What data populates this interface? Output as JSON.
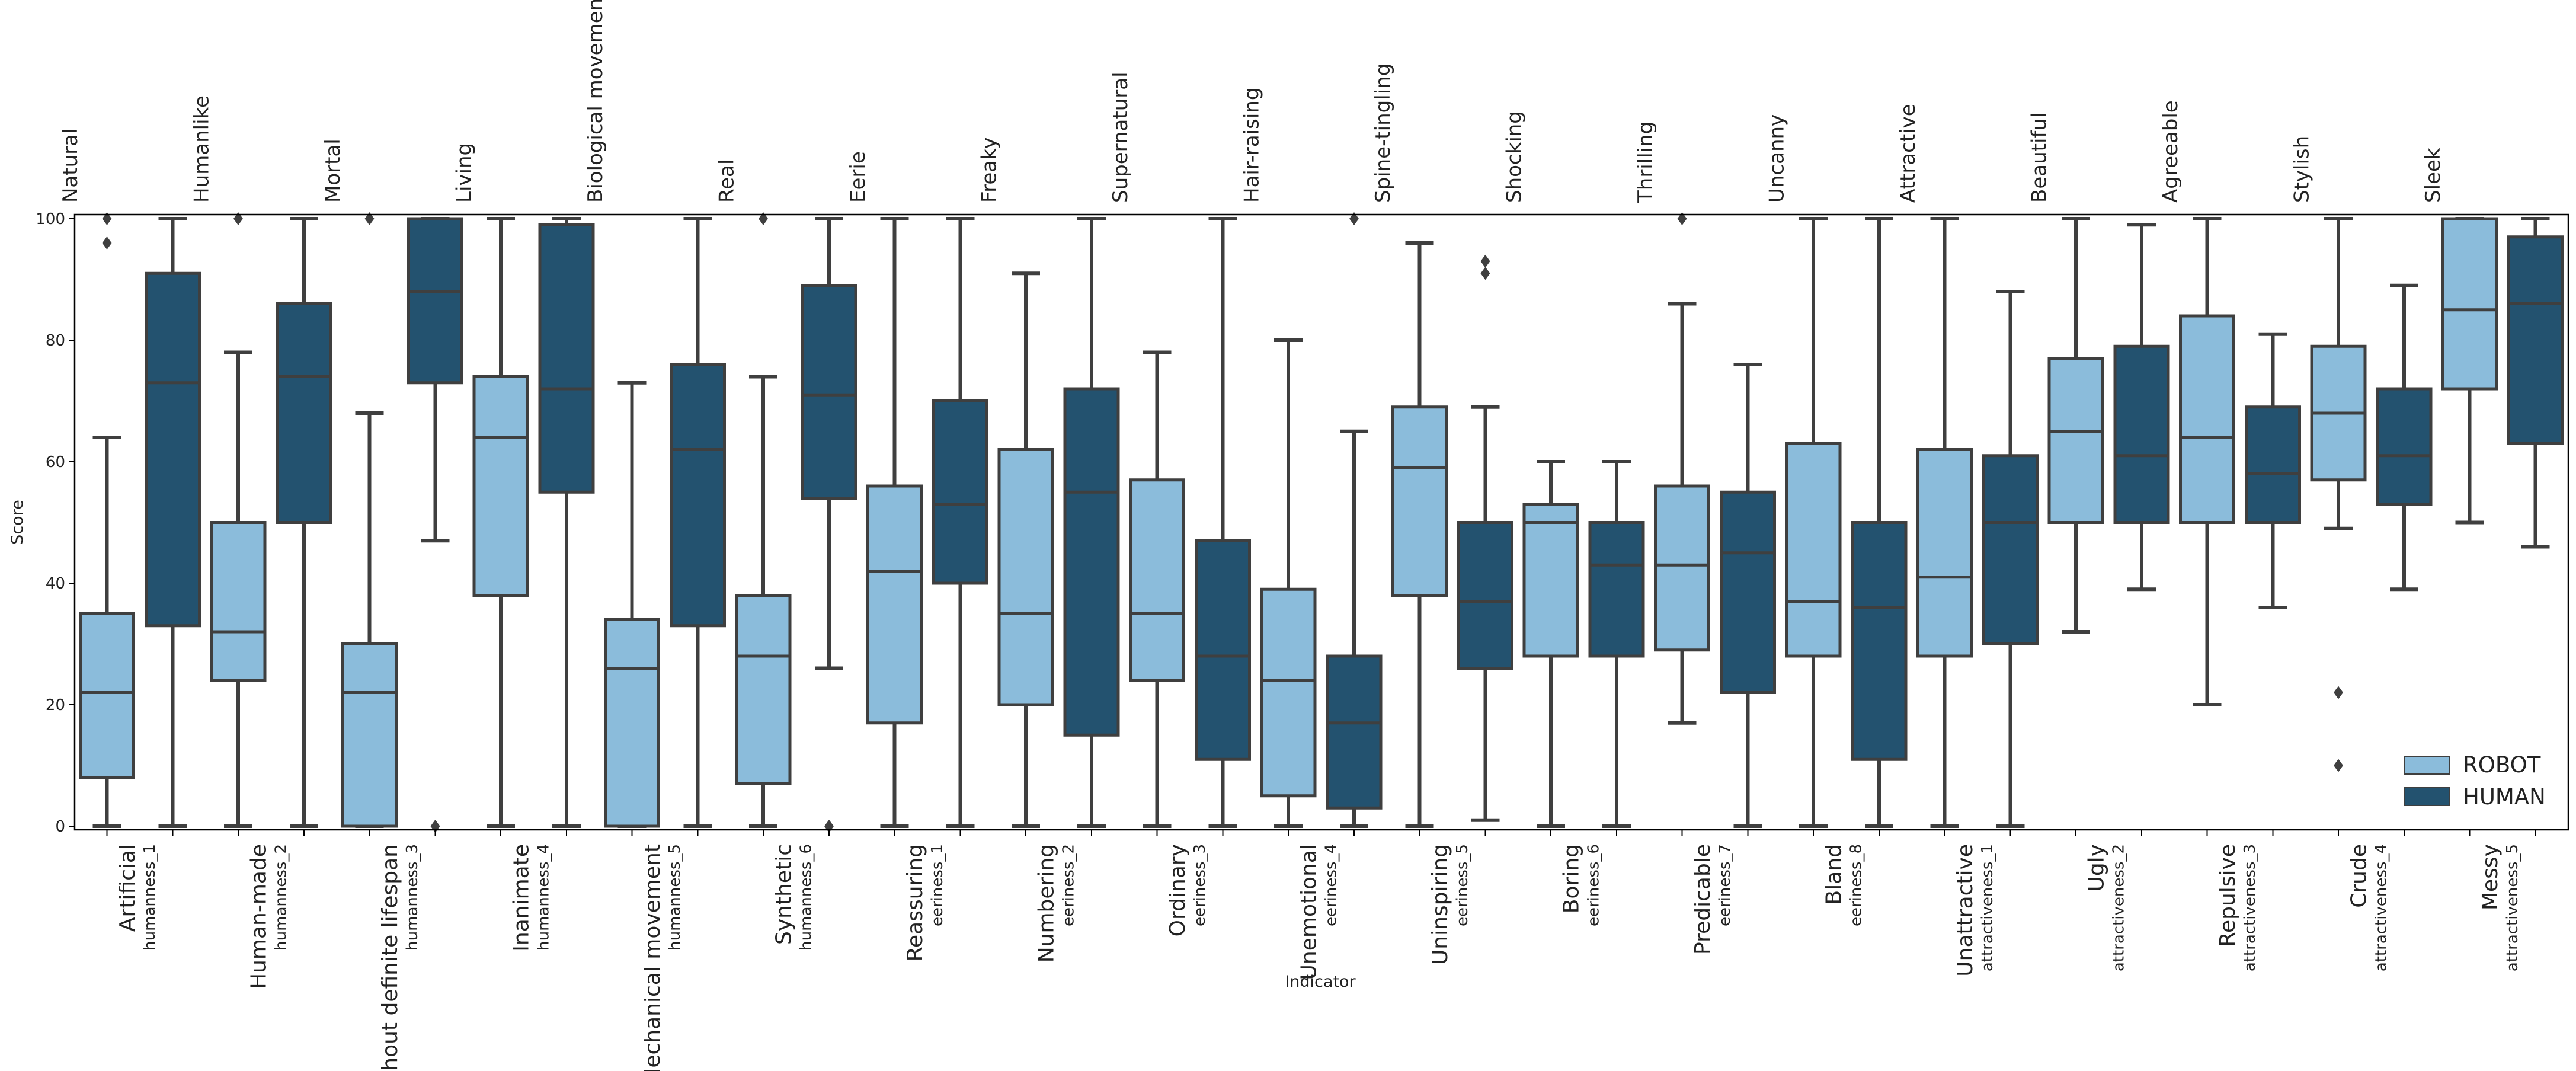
{
  "chart_data": {
    "type": "boxplot",
    "xlabel": "Indicator",
    "ylabel": "Score",
    "ylim": [
      0,
      100
    ],
    "yticks": [
      0,
      20,
      40,
      60,
      80,
      100
    ],
    "grid": false,
    "legend_position": "lower-right",
    "series": [
      {
        "name": "ROBOT",
        "color": "#8bbcdb"
      },
      {
        "name": "HUMAN",
        "color": "#23526f"
      }
    ],
    "indicators": [
      {
        "top_label": "Natural",
        "bottom_label": "Artificial",
        "code": "humanness_1",
        "robot": {
          "whisker_low": 0,
          "q1": 8,
          "median": 22,
          "q3": 35,
          "whisker_high": 64,
          "outliers": [
            96,
            100
          ]
        },
        "human": {
          "whisker_low": 0,
          "q1": 33,
          "median": 73,
          "q3": 91,
          "whisker_high": 100,
          "outliers": []
        }
      },
      {
        "top_label": "Humanlike",
        "bottom_label": "Human-made",
        "code": "humanness_2",
        "robot": {
          "whisker_low": 0,
          "q1": 24,
          "median": 32,
          "q3": 50,
          "whisker_high": 78,
          "outliers": [
            100
          ]
        },
        "human": {
          "whisker_low": 0,
          "q1": 50,
          "median": 74,
          "q3": 86,
          "whisker_high": 100,
          "outliers": []
        }
      },
      {
        "top_label": "Mortal",
        "bottom_label": "Without definite lifespan",
        "code": "humanness_3",
        "robot": {
          "whisker_low": 0,
          "q1": 0,
          "median": 22,
          "q3": 30,
          "whisker_high": 68,
          "outliers": [
            100
          ]
        },
        "human": {
          "whisker_low": 47,
          "q1": 73,
          "median": 88,
          "q3": 100,
          "whisker_high": 100,
          "outliers": [
            0
          ]
        }
      },
      {
        "top_label": "Living",
        "bottom_label": "Inanimate",
        "code": "humanness_4",
        "robot": {
          "whisker_low": 0,
          "q1": 38,
          "median": 64,
          "q3": 74,
          "whisker_high": 100,
          "outliers": []
        },
        "human": {
          "whisker_low": 0,
          "q1": 55,
          "median": 72,
          "q3": 99,
          "whisker_high": 100,
          "outliers": []
        }
      },
      {
        "top_label": "Biological movement",
        "bottom_label": "Mechanical movement",
        "code": "humanness_5",
        "robot": {
          "whisker_low": 0,
          "q1": 0,
          "median": 26,
          "q3": 34,
          "whisker_high": 73,
          "outliers": []
        },
        "human": {
          "whisker_low": 0,
          "q1": 33,
          "median": 62,
          "q3": 76,
          "whisker_high": 100,
          "outliers": []
        }
      },
      {
        "top_label": "Real",
        "bottom_label": "Synthetic",
        "code": "humanness_6",
        "robot": {
          "whisker_low": 0,
          "q1": 7,
          "median": 28,
          "q3": 38,
          "whisker_high": 74,
          "outliers": [
            100
          ]
        },
        "human": {
          "whisker_low": 26,
          "q1": 54,
          "median": 71,
          "q3": 89,
          "whisker_high": 100,
          "outliers": [
            0
          ]
        }
      },
      {
        "top_label": "Eerie",
        "bottom_label": "Reassuring",
        "code": "eeriness_1",
        "robot": {
          "whisker_low": 0,
          "q1": 17,
          "median": 42,
          "q3": 56,
          "whisker_high": 100,
          "outliers": []
        },
        "human": {
          "whisker_low": 0,
          "q1": 40,
          "median": 53,
          "q3": 70,
          "whisker_high": 100,
          "outliers": []
        }
      },
      {
        "top_label": "Freaky",
        "bottom_label": "Numbering",
        "code": "eeriness_2",
        "robot": {
          "whisker_low": 0,
          "q1": 20,
          "median": 35,
          "q3": 62,
          "whisker_high": 91,
          "outliers": []
        },
        "human": {
          "whisker_low": 0,
          "q1": 15,
          "median": 55,
          "q3": 72,
          "whisker_high": 100,
          "outliers": []
        }
      },
      {
        "top_label": "Supernatural",
        "bottom_label": "Ordinary",
        "code": "eeriness_3",
        "robot": {
          "whisker_low": 0,
          "q1": 24,
          "median": 35,
          "q3": 57,
          "whisker_high": 78,
          "outliers": []
        },
        "human": {
          "whisker_low": 0,
          "q1": 11,
          "median": 28,
          "q3": 47,
          "whisker_high": 100,
          "outliers": []
        }
      },
      {
        "top_label": "Hair-raising",
        "bottom_label": "Unemotional",
        "code": "eeriness_4",
        "robot": {
          "whisker_low": 0,
          "q1": 5,
          "median": 24,
          "q3": 39,
          "whisker_high": 80,
          "outliers": []
        },
        "human": {
          "whisker_low": 0,
          "q1": 3,
          "median": 17,
          "q3": 28,
          "whisker_high": 65,
          "outliers": [
            100
          ]
        }
      },
      {
        "top_label": "Spine-tingling",
        "bottom_label": "Uninspiring",
        "code": "eeriness_5",
        "robot": {
          "whisker_low": 0,
          "q1": 38,
          "median": 59,
          "q3": 69,
          "whisker_high": 96,
          "outliers": []
        },
        "human": {
          "whisker_low": 1,
          "q1": 26,
          "median": 37,
          "q3": 50,
          "whisker_high": 69,
          "outliers": [
            91,
            93
          ]
        }
      },
      {
        "top_label": "Shocking",
        "bottom_label": "Boring",
        "code": "eeriness_6",
        "robot": {
          "whisker_low": 0,
          "q1": 28,
          "median": 50,
          "q3": 53,
          "whisker_high": 60,
          "outliers": []
        },
        "human": {
          "whisker_low": 0,
          "q1": 28,
          "median": 43,
          "q3": 50,
          "whisker_high": 60,
          "outliers": []
        }
      },
      {
        "top_label": "Thrilling",
        "bottom_label": "Predicable",
        "code": "eeriness_7",
        "robot": {
          "whisker_low": 17,
          "q1": 29,
          "median": 43,
          "q3": 56,
          "whisker_high": 86,
          "outliers": [
            100
          ]
        },
        "human": {
          "whisker_low": 0,
          "q1": 22,
          "median": 45,
          "q3": 55,
          "whisker_high": 76,
          "outliers": []
        }
      },
      {
        "top_label": "Uncanny",
        "bottom_label": "Bland",
        "code": "eeriness_8",
        "robot": {
          "whisker_low": 0,
          "q1": 28,
          "median": 37,
          "q3": 63,
          "whisker_high": 100,
          "outliers": []
        },
        "human": {
          "whisker_low": 0,
          "q1": 11,
          "median": 36,
          "q3": 50,
          "whisker_high": 100,
          "outliers": []
        }
      },
      {
        "top_label": "Attractive",
        "bottom_label": "Unattractive",
        "code": "attractiveness_1",
        "robot": {
          "whisker_low": 0,
          "q1": 28,
          "median": 41,
          "q3": 62,
          "whisker_high": 100,
          "outliers": []
        },
        "human": {
          "whisker_low": 0,
          "q1": 30,
          "median": 50,
          "q3": 61,
          "whisker_high": 88,
          "outliers": []
        }
      },
      {
        "top_label": "Beautiful",
        "bottom_label": "Ugly",
        "code": "attractiveness_2",
        "robot": {
          "whisker_low": 32,
          "q1": 50,
          "median": 65,
          "q3": 77,
          "whisker_high": 100,
          "outliers": []
        },
        "human": {
          "whisker_low": 39,
          "q1": 50,
          "median": 61,
          "q3": 79,
          "whisker_high": 99,
          "outliers": []
        }
      },
      {
        "top_label": "Agreeable",
        "bottom_label": "Repulsive",
        "code": "attractiveness_3",
        "robot": {
          "whisker_low": 20,
          "q1": 50,
          "median": 64,
          "q3": 84,
          "whisker_high": 100,
          "outliers": []
        },
        "human": {
          "whisker_low": 36,
          "q1": 50,
          "median": 58,
          "q3": 69,
          "whisker_high": 81,
          "outliers": []
        }
      },
      {
        "top_label": "Stylish",
        "bottom_label": "Crude",
        "code": "attractiveness_4",
        "robot": {
          "whisker_low": 49,
          "q1": 57,
          "median": 68,
          "q3": 79,
          "whisker_high": 100,
          "outliers": [
            10,
            22
          ]
        },
        "human": {
          "whisker_low": 39,
          "q1": 53,
          "median": 61,
          "q3": 72,
          "whisker_high": 89,
          "outliers": []
        }
      },
      {
        "top_label": "Sleek",
        "bottom_label": "Messy",
        "code": "attractiveness_5",
        "robot": {
          "whisker_low": 50,
          "q1": 72,
          "median": 85,
          "q3": 100,
          "whisker_high": 100,
          "outliers": []
        },
        "human": {
          "whisker_low": 46,
          "q1": 63,
          "median": 86,
          "q3": 97,
          "whisker_high": 100,
          "outliers": []
        }
      }
    ]
  }
}
